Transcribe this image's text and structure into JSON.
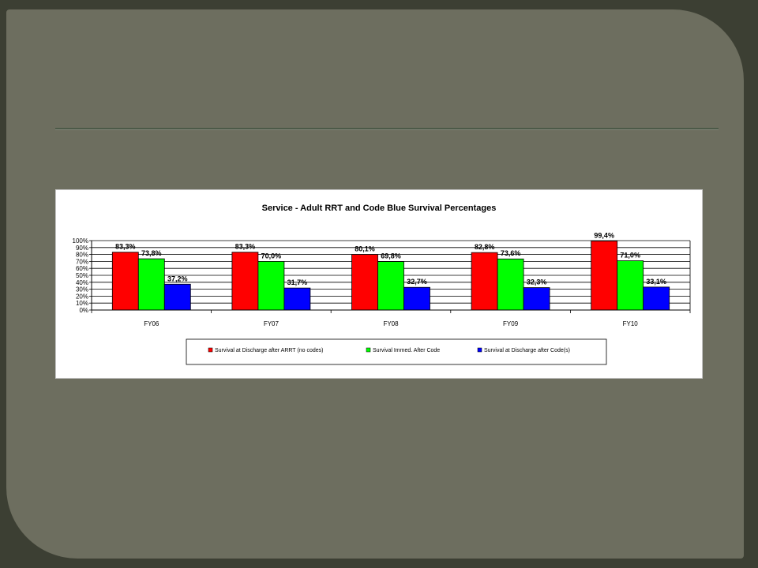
{
  "chart_data": {
    "type": "bar",
    "title": "Service - Adult RRT and Code Blue Survival Percentages",
    "categories": [
      "FY06",
      "FY07",
      "FY08",
      "FY09",
      "FY10"
    ],
    "series": [
      {
        "name": "Survival at Discharge after ARRT (no codes)",
        "values": [
          83.3,
          83.3,
          80.1,
          82.8,
          99.4
        ],
        "labels": [
          "83,3%",
          "83,3%",
          "80,1%",
          "82,8%",
          "99,4%"
        ],
        "color": "#ff0000"
      },
      {
        "name": "Survival Immed. After Code",
        "values": [
          73.8,
          70.0,
          69.8,
          73.6,
          71.0
        ],
        "labels": [
          "73,8%",
          "70,0%",
          "69,8%",
          "73,6%",
          "71,0%"
        ],
        "color": "#00ff00"
      },
      {
        "name": "Survival at Discharge after Code(s)",
        "values": [
          37.2,
          31.7,
          32.7,
          32.3,
          33.1
        ],
        "labels": [
          "37,2%",
          "31,7%",
          "32,7%",
          "32,3%",
          "33,1%"
        ],
        "color": "#0000ff"
      }
    ],
    "ylim": [
      0,
      100
    ],
    "yticks": [
      "0%",
      "10%",
      "20%",
      "30%",
      "40%",
      "50%",
      "60%",
      "70%",
      "80%",
      "90%",
      "100%"
    ],
    "xlabel": "",
    "ylabel": "",
    "grid": true,
    "legend": "bottom"
  }
}
